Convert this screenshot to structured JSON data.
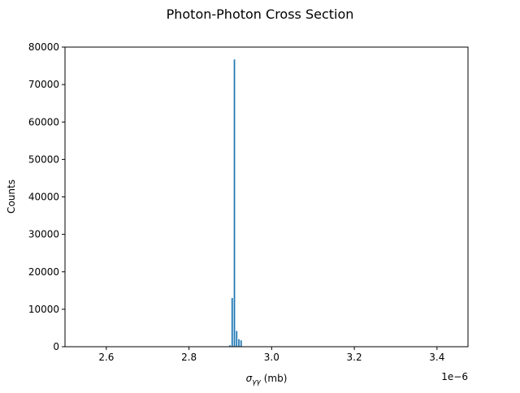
{
  "chart_data": {
    "type": "bar",
    "title": "Photon-Photon Cross Section",
    "xlabel_symbol": "σ",
    "xlabel_subscript": "γγ",
    "xlabel_unit": " (mb)",
    "ylabel": "Counts",
    "x_offset_label": "1e−6",
    "xlim": [
      2.5,
      3.475
    ],
    "ylim": [
      0,
      80000
    ],
    "x_ticks": [
      2.6,
      2.8,
      3.0,
      3.2,
      3.4
    ],
    "x_tick_labels": [
      "2.6",
      "2.8",
      "3.0",
      "3.2",
      "3.4"
    ],
    "y_ticks": [
      0,
      10000,
      20000,
      30000,
      40000,
      50000,
      60000,
      70000,
      80000
    ],
    "y_tick_labels": [
      "0",
      "10000",
      "20000",
      "30000",
      "40000",
      "50000",
      "60000",
      "70000",
      "80000"
    ],
    "bar_color": "#1f77b4",
    "bins": [
      {
        "x0": 2.8965,
        "x1": 2.9018,
        "value": 400
      },
      {
        "x0": 2.9018,
        "x1": 2.9072,
        "value": 13000
      },
      {
        "x0": 2.9072,
        "x1": 2.9126,
        "value": 76700
      },
      {
        "x0": 2.9126,
        "x1": 2.918,
        "value": 4200
      },
      {
        "x0": 2.918,
        "x1": 2.9234,
        "value": 2000
      },
      {
        "x0": 2.9234,
        "x1": 2.9288,
        "value": 1700
      }
    ]
  }
}
